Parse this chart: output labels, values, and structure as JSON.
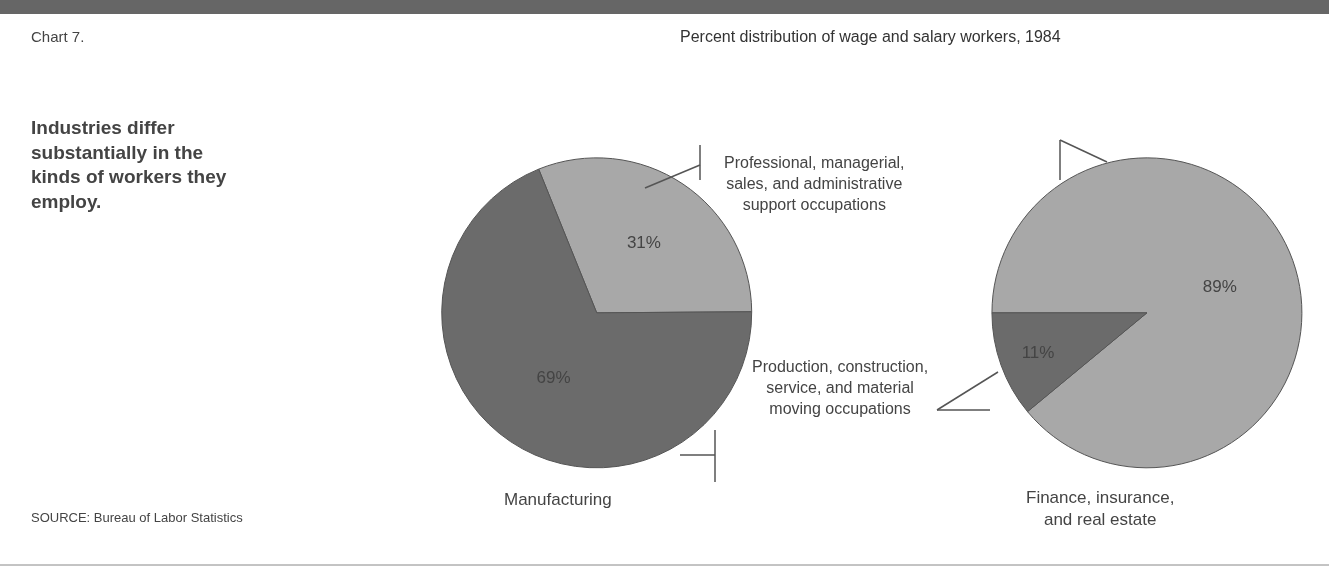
{
  "chart_data": [
    {
      "type": "pie",
      "title": "Percent distribution of wage and salary workers, 1984",
      "xlabel": "Manufacturing",
      "categories": [
        "Professional, managerial, sales, and administrative support occupations",
        "Production, construction, service, and material moving occupations"
      ],
      "values": [
        31,
        69
      ],
      "colors": [
        "#a8a8a8",
        "#6b6b6b"
      ],
      "value_labels": [
        "31%",
        "69%"
      ],
      "annotations": [
        "Chart 7.",
        "Industries differ substantially in the kinds of workers they employ.",
        "SOURCE: Bureau of Labor Statistics"
      ]
    },
    {
      "type": "pie",
      "xlabel": "Finance, insurance, and real estate",
      "categories": [
        null,
        null
      ],
      "values": [
        89,
        11
      ],
      "colors": [
        "#a8a8a8",
        "#6b6b6b"
      ],
      "value_labels": [
        "89%",
        "11%"
      ]
    }
  ]
}
